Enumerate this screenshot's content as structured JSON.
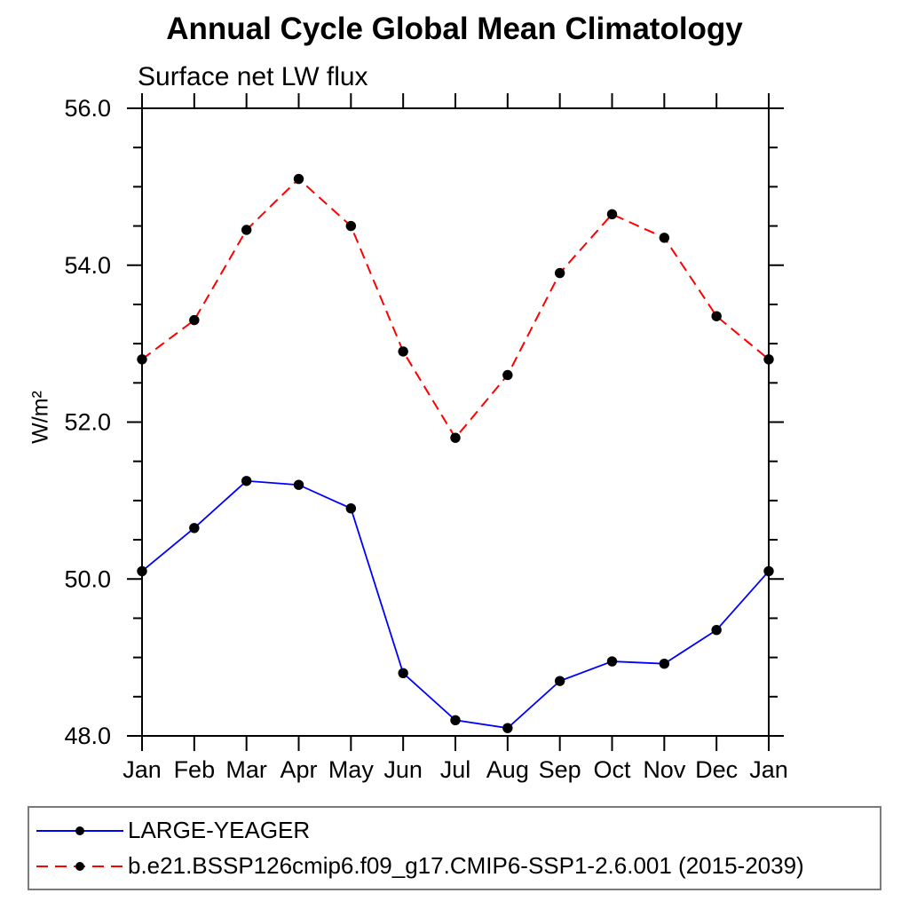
{
  "title": "Annual Cycle Global Mean Climatology",
  "subtitle": "Surface net LW flux",
  "ylabel": "W/m²",
  "chart_data": {
    "type": "line",
    "categories": [
      "Jan",
      "Feb",
      "Mar",
      "Apr",
      "May",
      "Jun",
      "Jul",
      "Aug",
      "Sep",
      "Oct",
      "Nov",
      "Dec",
      "Jan"
    ],
    "series": [
      {
        "name": "LARGE-YEAGER",
        "color": "#0000ff",
        "line_style": "solid",
        "line_width": 1.8,
        "marker": "circle",
        "marker_color": "#000000",
        "values": [
          50.1,
          50.65,
          51.25,
          51.2,
          50.9,
          48.8,
          48.2,
          48.1,
          48.7,
          48.95,
          48.92,
          49.35,
          50.1
        ]
      },
      {
        "name": "b.e21.BSSP126cmip6.f09_g17.CMIP6-SSP1-2.6.001 (2015-2039)",
        "color": "#ff0000",
        "line_style": "dashed",
        "line_width": 2.0,
        "marker": "circle",
        "marker_color": "#000000",
        "values": [
          52.8,
          53.3,
          54.45,
          55.1,
          54.5,
          52.9,
          51.8,
          52.6,
          53.9,
          54.65,
          54.35,
          53.35,
          52.8
        ]
      }
    ],
    "xlabel": "",
    "ylabel": "W/m²",
    "ylim": [
      48.0,
      56.0
    ],
    "y_major_step": 2.0,
    "y_minor_step": 0.5,
    "y_tick_labels": [
      "48.0",
      "50.0",
      "52.0",
      "54.0",
      "56.0"
    ],
    "grid": false,
    "legend_position": "bottom",
    "axis_color": "#000000",
    "legend_border_color": "#7a7a7a"
  }
}
